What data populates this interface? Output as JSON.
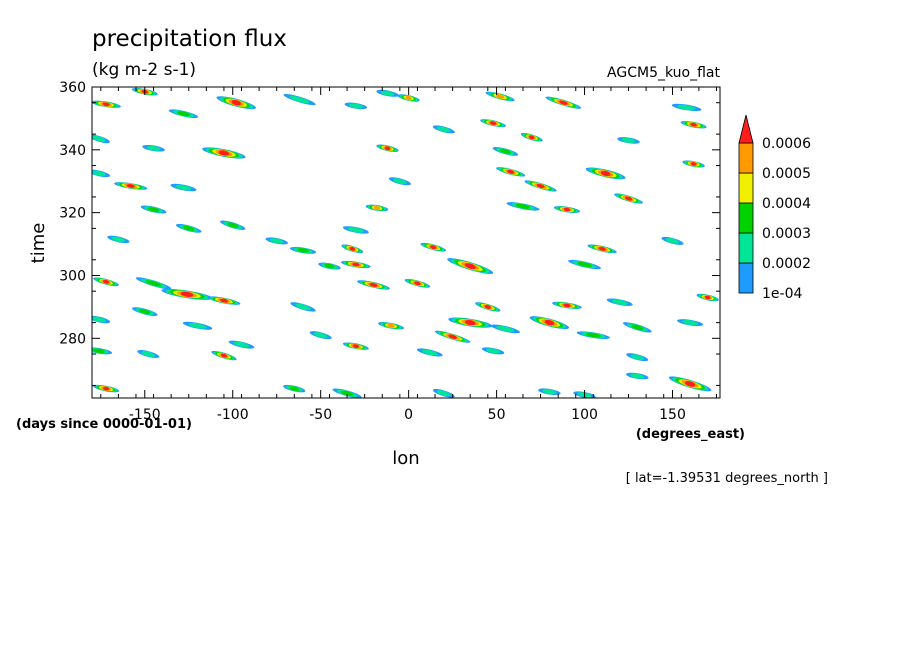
{
  "chart_data": {
    "type": "heatmap",
    "title": "precipitation flux",
    "subtitle": "(kg m-2 s-1)",
    "dataset": "AGCM5_kuo_flat",
    "xlabel": "lon",
    "ylabel": "time",
    "x_units": "(degrees_east)",
    "y_units": "(days since 0000-01-01)",
    "slice_info": "[ lat=-1.39531 degrees_north ]",
    "xlim": [
      -180,
      177
    ],
    "ylim": [
      261,
      360
    ],
    "x_ticks": [
      "-150",
      "-100",
      "-50",
      "0",
      "50",
      "100",
      "150"
    ],
    "x_tick_values": [
      -150,
      -100,
      -50,
      0,
      50,
      100,
      150
    ],
    "y_ticks": [
      "280",
      "300",
      "320",
      "340",
      "360"
    ],
    "y_tick_values": [
      280,
      300,
      320,
      340,
      360
    ],
    "grid": false,
    "legend": {
      "placement": "right",
      "labels": [
        "1e-04",
        "0.0002",
        "0.0003",
        "0.0004",
        "0.0005",
        "0.0006"
      ],
      "levels": [
        0.0001,
        0.0002,
        0.0003,
        0.0004,
        0.0005,
        0.0006
      ],
      "colors": [
        "#1e9bff",
        "#00e696",
        "#00d200",
        "#f0f000",
        "#ff9b00",
        "#ff1e1e"
      ],
      "extend": "max"
    },
    "events": [
      {
        "lon": -172,
        "time": 354.5,
        "len": 10,
        "peak": 6
      },
      {
        "lon": -150,
        "time": 358.5,
        "len": 8,
        "peak": 6
      },
      {
        "lon": -128,
        "time": 351.5,
        "len": 10,
        "peak": 3
      },
      {
        "lon": -98,
        "time": 355.0,
        "len": 16,
        "peak": 6
      },
      {
        "lon": -62,
        "time": 356.0,
        "len": 12,
        "peak": 2
      },
      {
        "lon": -30,
        "time": 354.0,
        "len": 6,
        "peak": 2
      },
      {
        "lon": -12,
        "time": 358.0,
        "len": 6,
        "peak": 2
      },
      {
        "lon": 0,
        "time": 356.5,
        "len": 6,
        "peak": 5
      },
      {
        "lon": 52,
        "time": 357.0,
        "len": 10,
        "peak": 5
      },
      {
        "lon": 88,
        "time": 355.0,
        "len": 14,
        "peak": 6
      },
      {
        "lon": 158,
        "time": 353.5,
        "len": 10,
        "peak": 2
      },
      {
        "lon": 162,
        "time": 348.0,
        "len": 8,
        "peak": 6
      },
      {
        "lon": 48,
        "time": 348.5,
        "len": 8,
        "peak": 6
      },
      {
        "lon": 20,
        "time": 346.5,
        "len": 6,
        "peak": 2
      },
      {
        "lon": -176,
        "time": 343.5,
        "len": 6,
        "peak": 2
      },
      {
        "lon": -145,
        "time": 340.5,
        "len": 6,
        "peak": 2
      },
      {
        "lon": -105,
        "time": 339.0,
        "len": 18,
        "peak": 6
      },
      {
        "lon": -12,
        "time": 340.5,
        "len": 6,
        "peak": 6
      },
      {
        "lon": 55,
        "time": 339.5,
        "len": 8,
        "peak": 3
      },
      {
        "lon": 70,
        "time": 344.0,
        "len": 6,
        "peak": 6
      },
      {
        "lon": 125,
        "time": 343.0,
        "len": 6,
        "peak": 2
      },
      {
        "lon": 162,
        "time": 335.5,
        "len": 6,
        "peak": 6
      },
      {
        "lon": 112,
        "time": 332.5,
        "len": 16,
        "peak": 6
      },
      {
        "lon": 58,
        "time": 333.0,
        "len": 10,
        "peak": 6
      },
      {
        "lon": 75,
        "time": 328.5,
        "len": 12,
        "peak": 6
      },
      {
        "lon": -158,
        "time": 328.5,
        "len": 12,
        "peak": 6
      },
      {
        "lon": -128,
        "time": 328.0,
        "len": 8,
        "peak": 2
      },
      {
        "lon": -176,
        "time": 332.5,
        "len": 6,
        "peak": 2
      },
      {
        "lon": -5,
        "time": 330.0,
        "len": 6,
        "peak": 2
      },
      {
        "lon": 125,
        "time": 324.5,
        "len": 10,
        "peak": 6
      },
      {
        "lon": 90,
        "time": 321.0,
        "len": 8,
        "peak": 6
      },
      {
        "lon": 65,
        "time": 322.0,
        "len": 12,
        "peak": 3
      },
      {
        "lon": -145,
        "time": 321.0,
        "len": 8,
        "peak": 3
      },
      {
        "lon": -125,
        "time": 315.0,
        "len": 8,
        "peak": 3
      },
      {
        "lon": -100,
        "time": 316.0,
        "len": 8,
        "peak": 3
      },
      {
        "lon": -18,
        "time": 321.5,
        "len": 6,
        "peak": 5
      },
      {
        "lon": -30,
        "time": 314.5,
        "len": 8,
        "peak": 2
      },
      {
        "lon": 110,
        "time": 308.5,
        "len": 10,
        "peak": 6
      },
      {
        "lon": 14,
        "time": 309.0,
        "len": 8,
        "peak": 6
      },
      {
        "lon": -32,
        "time": 308.5,
        "len": 6,
        "peak": 6
      },
      {
        "lon": -60,
        "time": 308.0,
        "len": 8,
        "peak": 3
      },
      {
        "lon": -75,
        "time": 311.0,
        "len": 6,
        "peak": 2
      },
      {
        "lon": -165,
        "time": 311.5,
        "len": 6,
        "peak": 2
      },
      {
        "lon": 150,
        "time": 311.0,
        "len": 6,
        "peak": 2
      },
      {
        "lon": 35,
        "time": 303.0,
        "len": 20,
        "peak": 6
      },
      {
        "lon": -30,
        "time": 303.5,
        "len": 10,
        "peak": 6
      },
      {
        "lon": -45,
        "time": 303.0,
        "len": 6,
        "peak": 3
      },
      {
        "lon": 100,
        "time": 303.5,
        "len": 12,
        "peak": 3
      },
      {
        "lon": -172,
        "time": 298.0,
        "len": 8,
        "peak": 6
      },
      {
        "lon": -145,
        "time": 297.5,
        "len": 14,
        "peak": 3
      },
      {
        "lon": -126,
        "time": 294.0,
        "len": 22,
        "peak": 6
      },
      {
        "lon": -105,
        "time": 292.0,
        "len": 12,
        "peak": 6
      },
      {
        "lon": -20,
        "time": 297.0,
        "len": 12,
        "peak": 6
      },
      {
        "lon": 5,
        "time": 297.5,
        "len": 8,
        "peak": 6
      },
      {
        "lon": 45,
        "time": 290.0,
        "len": 8,
        "peak": 6
      },
      {
        "lon": 90,
        "time": 290.5,
        "len": 10,
        "peak": 6
      },
      {
        "lon": 120,
        "time": 291.5,
        "len": 8,
        "peak": 2
      },
      {
        "lon": 170,
        "time": 293.0,
        "len": 6,
        "peak": 6
      },
      {
        "lon": -150,
        "time": 288.5,
        "len": 8,
        "peak": 3
      },
      {
        "lon": -60,
        "time": 290.0,
        "len": 8,
        "peak": 2
      },
      {
        "lon": 35,
        "time": 285.0,
        "len": 18,
        "peak": 6
      },
      {
        "lon": -10,
        "time": 284.0,
        "len": 8,
        "peak": 5
      },
      {
        "lon": 55,
        "time": 283.0,
        "len": 10,
        "peak": 2
      },
      {
        "lon": 80,
        "time": 285.0,
        "len": 16,
        "peak": 6
      },
      {
        "lon": 130,
        "time": 283.5,
        "len": 10,
        "peak": 3
      },
      {
        "lon": 160,
        "time": 285.0,
        "len": 8,
        "peak": 2
      },
      {
        "lon": -120,
        "time": 284.0,
        "len": 10,
        "peak": 2
      },
      {
        "lon": -176,
        "time": 286.0,
        "len": 6,
        "peak": 2
      },
      {
        "lon": -50,
        "time": 281.0,
        "len": 6,
        "peak": 2
      },
      {
        "lon": 25,
        "time": 280.5,
        "len": 14,
        "peak": 6
      },
      {
        "lon": 105,
        "time": 281.0,
        "len": 12,
        "peak": 3
      },
      {
        "lon": -30,
        "time": 277.5,
        "len": 8,
        "peak": 6
      },
      {
        "lon": -95,
        "time": 278.0,
        "len": 8,
        "peak": 2
      },
      {
        "lon": -148,
        "time": 275.0,
        "len": 6,
        "peak": 2
      },
      {
        "lon": -105,
        "time": 274.5,
        "len": 8,
        "peak": 6
      },
      {
        "lon": -176,
        "time": 276.0,
        "len": 8,
        "peak": 3
      },
      {
        "lon": 48,
        "time": 276.0,
        "len": 6,
        "peak": 2
      },
      {
        "lon": 12,
        "time": 275.5,
        "len": 8,
        "peak": 2
      },
      {
        "lon": 130,
        "time": 274.0,
        "len": 6,
        "peak": 2
      },
      {
        "lon": 160,
        "time": 265.5,
        "len": 18,
        "peak": 6
      },
      {
        "lon": 130,
        "time": 268.0,
        "len": 6,
        "peak": 2
      },
      {
        "lon": -172,
        "time": 264.0,
        "len": 8,
        "peak": 6
      },
      {
        "lon": -65,
        "time": 264.0,
        "len": 6,
        "peak": 3
      },
      {
        "lon": -35,
        "time": 262.5,
        "len": 10,
        "peak": 3
      },
      {
        "lon": 20,
        "time": 262.5,
        "len": 6,
        "peak": 2
      },
      {
        "lon": 80,
        "time": 263.0,
        "len": 6,
        "peak": 2
      },
      {
        "lon": 100,
        "time": 262.0,
        "len": 6,
        "peak": 2
      }
    ]
  }
}
